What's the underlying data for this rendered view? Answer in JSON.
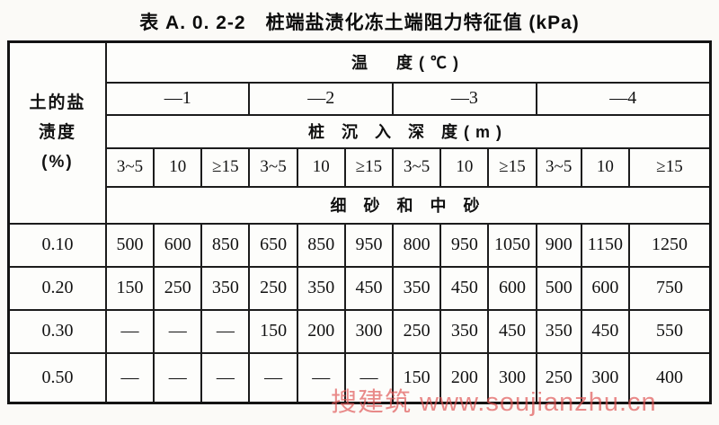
{
  "title": "表 A. 0. 2-2　桩端盐渍化冻土端阻力特征值 (kPa)",
  "table": {
    "corner_header_lines": [
      "土的盐",
      "渍度",
      "(%)"
    ],
    "temperature_header": "温　度(℃)",
    "temperatures": [
      "—1",
      "—2",
      "—3",
      "—4"
    ],
    "depth_header": "桩 沉 入 深 度(m)",
    "depth_labels": [
      "3~5",
      "10",
      "≥15",
      "3~5",
      "10",
      "≥15",
      "3~5",
      "10",
      "≥15",
      "3~5",
      "10",
      "≥15"
    ],
    "soil_header": "细 砂 和 中 砂",
    "rows": [
      {
        "salinity": "0.10",
        "values": [
          "500",
          "600",
          "850",
          "650",
          "850",
          "950",
          "800",
          "950",
          "1050",
          "900",
          "1150",
          "1250"
        ]
      },
      {
        "salinity": "0.20",
        "values": [
          "150",
          "250",
          "350",
          "250",
          "350",
          "450",
          "350",
          "450",
          "600",
          "500",
          "600",
          "750"
        ]
      },
      {
        "salinity": "0.30",
        "values": [
          "—",
          "—",
          "—",
          "150",
          "200",
          "300",
          "250",
          "350",
          "450",
          "350",
          "450",
          "550"
        ]
      },
      {
        "salinity": "0.50",
        "values": [
          "—",
          "—",
          "—",
          "—",
          "—",
          "—",
          "150",
          "200",
          "300",
          "250",
          "300",
          "400"
        ]
      }
    ]
  },
  "watermark": {
    "text": "搜建筑 www.soujianzhu.cn",
    "color": "#df5252"
  }
}
